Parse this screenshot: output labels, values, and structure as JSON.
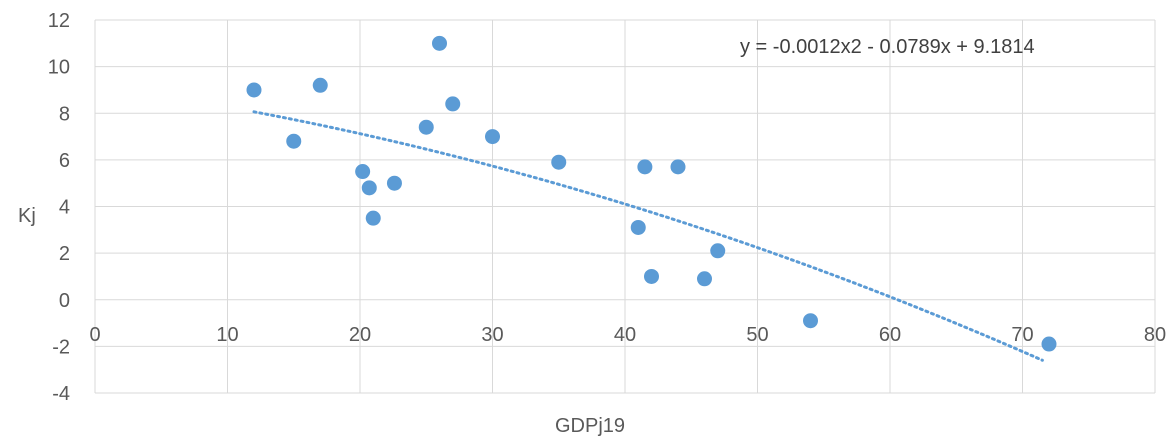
{
  "chart_data": {
    "type": "scatter",
    "xlabel": "GDPj19",
    "ylabel": "Kj",
    "xlim": [
      0,
      80
    ],
    "ylim": [
      -4,
      12
    ],
    "x_ticks": [
      "0",
      "10",
      "20",
      "30",
      "40",
      "50",
      "60",
      "70",
      "80"
    ],
    "y_ticks": [
      "12",
      "10",
      "8",
      "6",
      "4",
      "2",
      "0",
      "-2",
      "-4"
    ],
    "grid": true,
    "marker_color": "#5B9BD5",
    "trendline": {
      "type": "polynomial",
      "equation": "y = -0.0012x2 - 0.0789x + 9.1814",
      "coefficients": {
        "a": -0.0012,
        "b": -0.0789,
        "c": 9.1814
      },
      "x_range": [
        12,
        71.5
      ],
      "style": "dotted",
      "color": "#5B9BD5"
    },
    "points": [
      {
        "x": 12,
        "y": 9.0
      },
      {
        "x": 15,
        "y": 6.8
      },
      {
        "x": 17,
        "y": 9.2
      },
      {
        "x": 20.2,
        "y": 5.5
      },
      {
        "x": 20.7,
        "y": 4.8
      },
      {
        "x": 21,
        "y": 3.5
      },
      {
        "x": 22.6,
        "y": 5.0
      },
      {
        "x": 25,
        "y": 7.4
      },
      {
        "x": 26,
        "y": 11.0
      },
      {
        "x": 27,
        "y": 8.4
      },
      {
        "x": 30,
        "y": 7.0
      },
      {
        "x": 35,
        "y": 5.9
      },
      {
        "x": 41,
        "y": 3.1
      },
      {
        "x": 41.5,
        "y": 5.7
      },
      {
        "x": 42,
        "y": 1.0
      },
      {
        "x": 44,
        "y": 5.7
      },
      {
        "x": 46,
        "y": 0.9
      },
      {
        "x": 47,
        "y": 2.1
      },
      {
        "x": 54,
        "y": -0.9
      },
      {
        "x": 72,
        "y": -1.9
      }
    ]
  }
}
